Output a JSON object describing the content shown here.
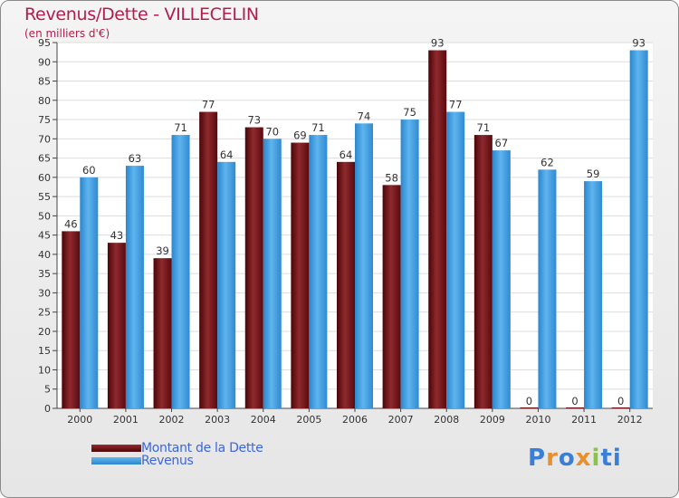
{
  "chart_data": {
    "type": "bar",
    "title": "Revenus/Dette - VILLECELIN",
    "subtitle": "(en milliers d'€)",
    "categories": [
      "2000",
      "2001",
      "2002",
      "2003",
      "2004",
      "2005",
      "2006",
      "2007",
      "2008",
      "2009",
      "2010",
      "2011",
      "2012"
    ],
    "series": [
      {
        "name": "Montant de la Dette",
        "color": "#6b0d12",
        "values": [
          46,
          43,
          39,
          77,
          73,
          69,
          64,
          58,
          93,
          71,
          0,
          0,
          0
        ]
      },
      {
        "name": "Revenus",
        "color": "#3a9be0",
        "values": [
          60,
          63,
          71,
          64,
          70,
          71,
          74,
          75,
          77,
          67,
          62,
          59,
          93
        ]
      }
    ],
    "ylim": [
      0,
      95
    ],
    "yticks": [
      0,
      5,
      10,
      15,
      20,
      25,
      30,
      35,
      40,
      45,
      50,
      55,
      60,
      65,
      70,
      75,
      80,
      85,
      90,
      95
    ],
    "grid": true,
    "legend": "bottom-left"
  },
  "logo": {
    "text": "Proxiti"
  }
}
